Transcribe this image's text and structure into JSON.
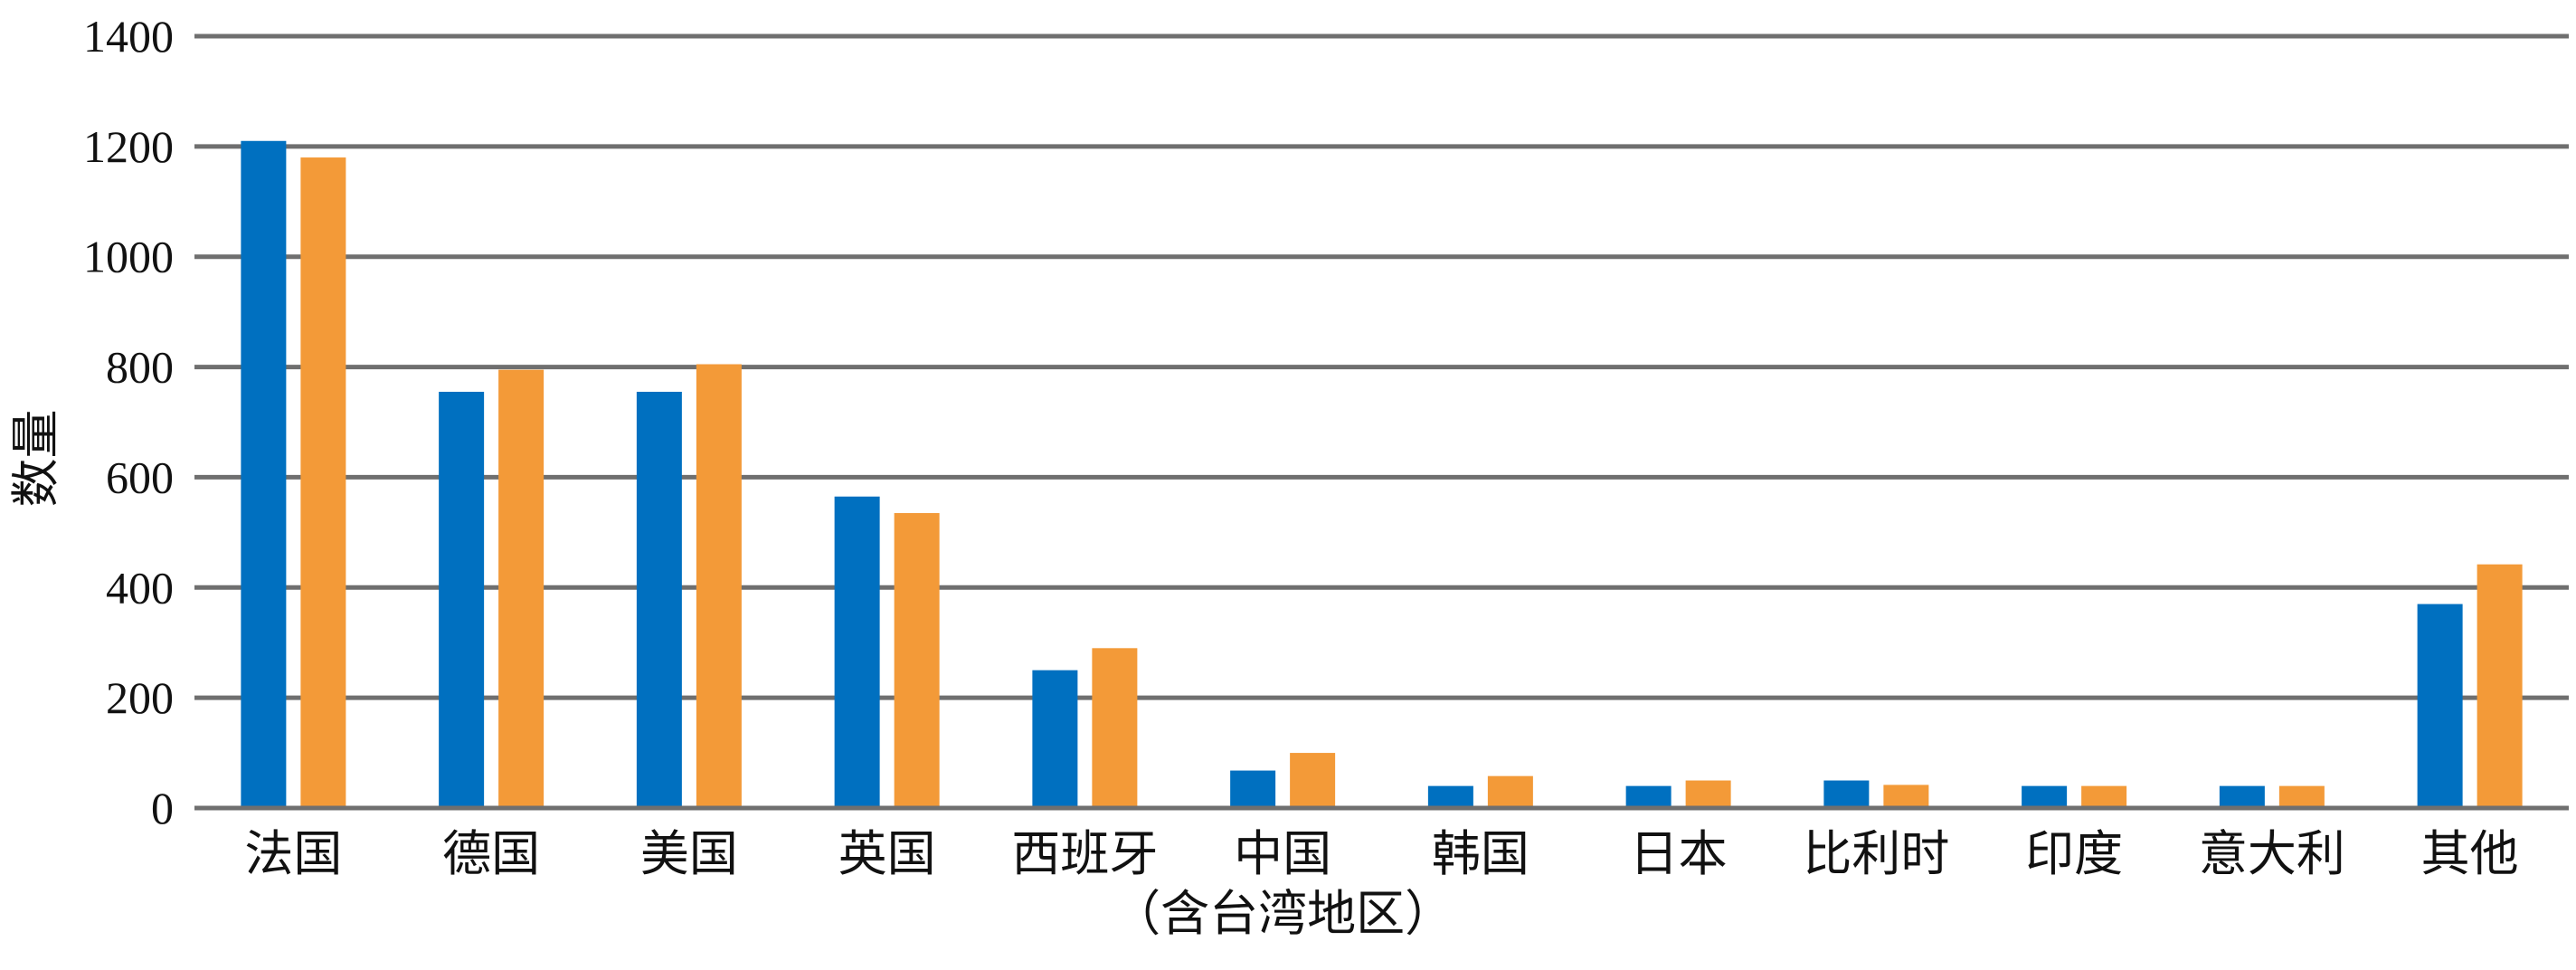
{
  "chart_data": {
    "type": "bar",
    "ylabel": "数量",
    "xlabel": "",
    "ylim": [
      0,
      1400
    ],
    "yticks": [
      0,
      200,
      400,
      600,
      800,
      1000,
      1200,
      1400
    ],
    "grid": true,
    "categories": [
      "法国",
      "德国",
      "美国",
      "英国",
      "西班牙",
      "中国\n（含台湾地区）",
      "韩国",
      "日本",
      "比利时",
      "印度",
      "意大利",
      "其他"
    ],
    "series": [
      {
        "color": "#0070c0",
        "values": [
          1210,
          755,
          755,
          565,
          250,
          68,
          40,
          40,
          50,
          40,
          40,
          370
        ]
      },
      {
        "color": "#f39a38",
        "values": [
          1180,
          795,
          805,
          535,
          290,
          100,
          58,
          50,
          42,
          40,
          40,
          442
        ]
      }
    ]
  }
}
